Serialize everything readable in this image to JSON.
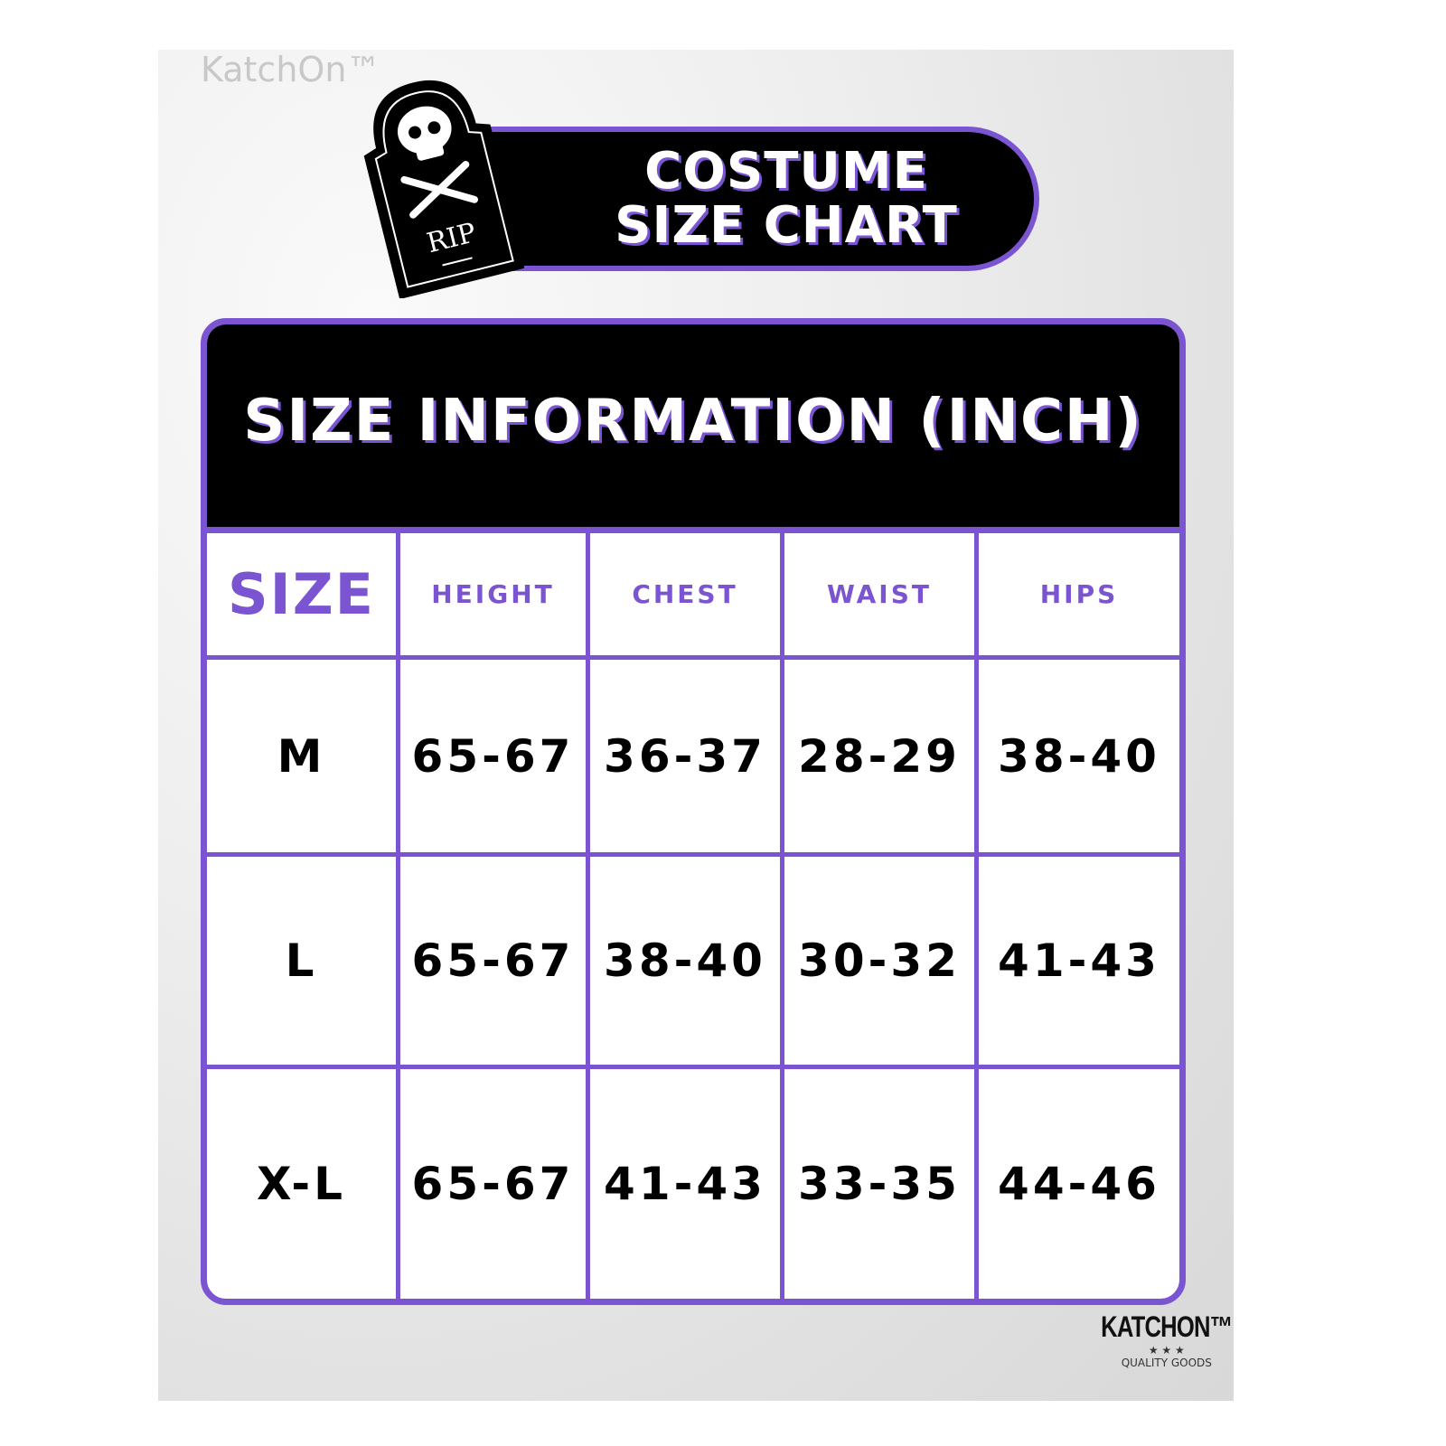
{
  "watermark": "KatchOn™",
  "banner": {
    "line1": "COSTUME",
    "line2": "SIZE CHART"
  },
  "tombstone": {
    "icon": "skull-crossbones-tombstone-icon",
    "text": "RIP"
  },
  "table": {
    "title": "SIZE INFORMATION (INCH)",
    "headers": [
      "SIZE",
      "HEIGHT",
      "CHEST",
      "WAIST",
      "HIPS"
    ],
    "rows": [
      [
        "M",
        "65-67",
        "36-37",
        "28-29",
        "38-40"
      ],
      [
        "L",
        "65-67",
        "38-40",
        "30-32",
        "41-43"
      ],
      [
        "X-L",
        "65-67",
        "41-43",
        "33-35",
        "44-46"
      ]
    ]
  },
  "logo": {
    "name": "KATCHON™",
    "stars": "★ ★ ★",
    "tagline": "QUALITY GOODS"
  },
  "colors": {
    "accent": "#7b55d1",
    "header_bg": "#000000"
  }
}
